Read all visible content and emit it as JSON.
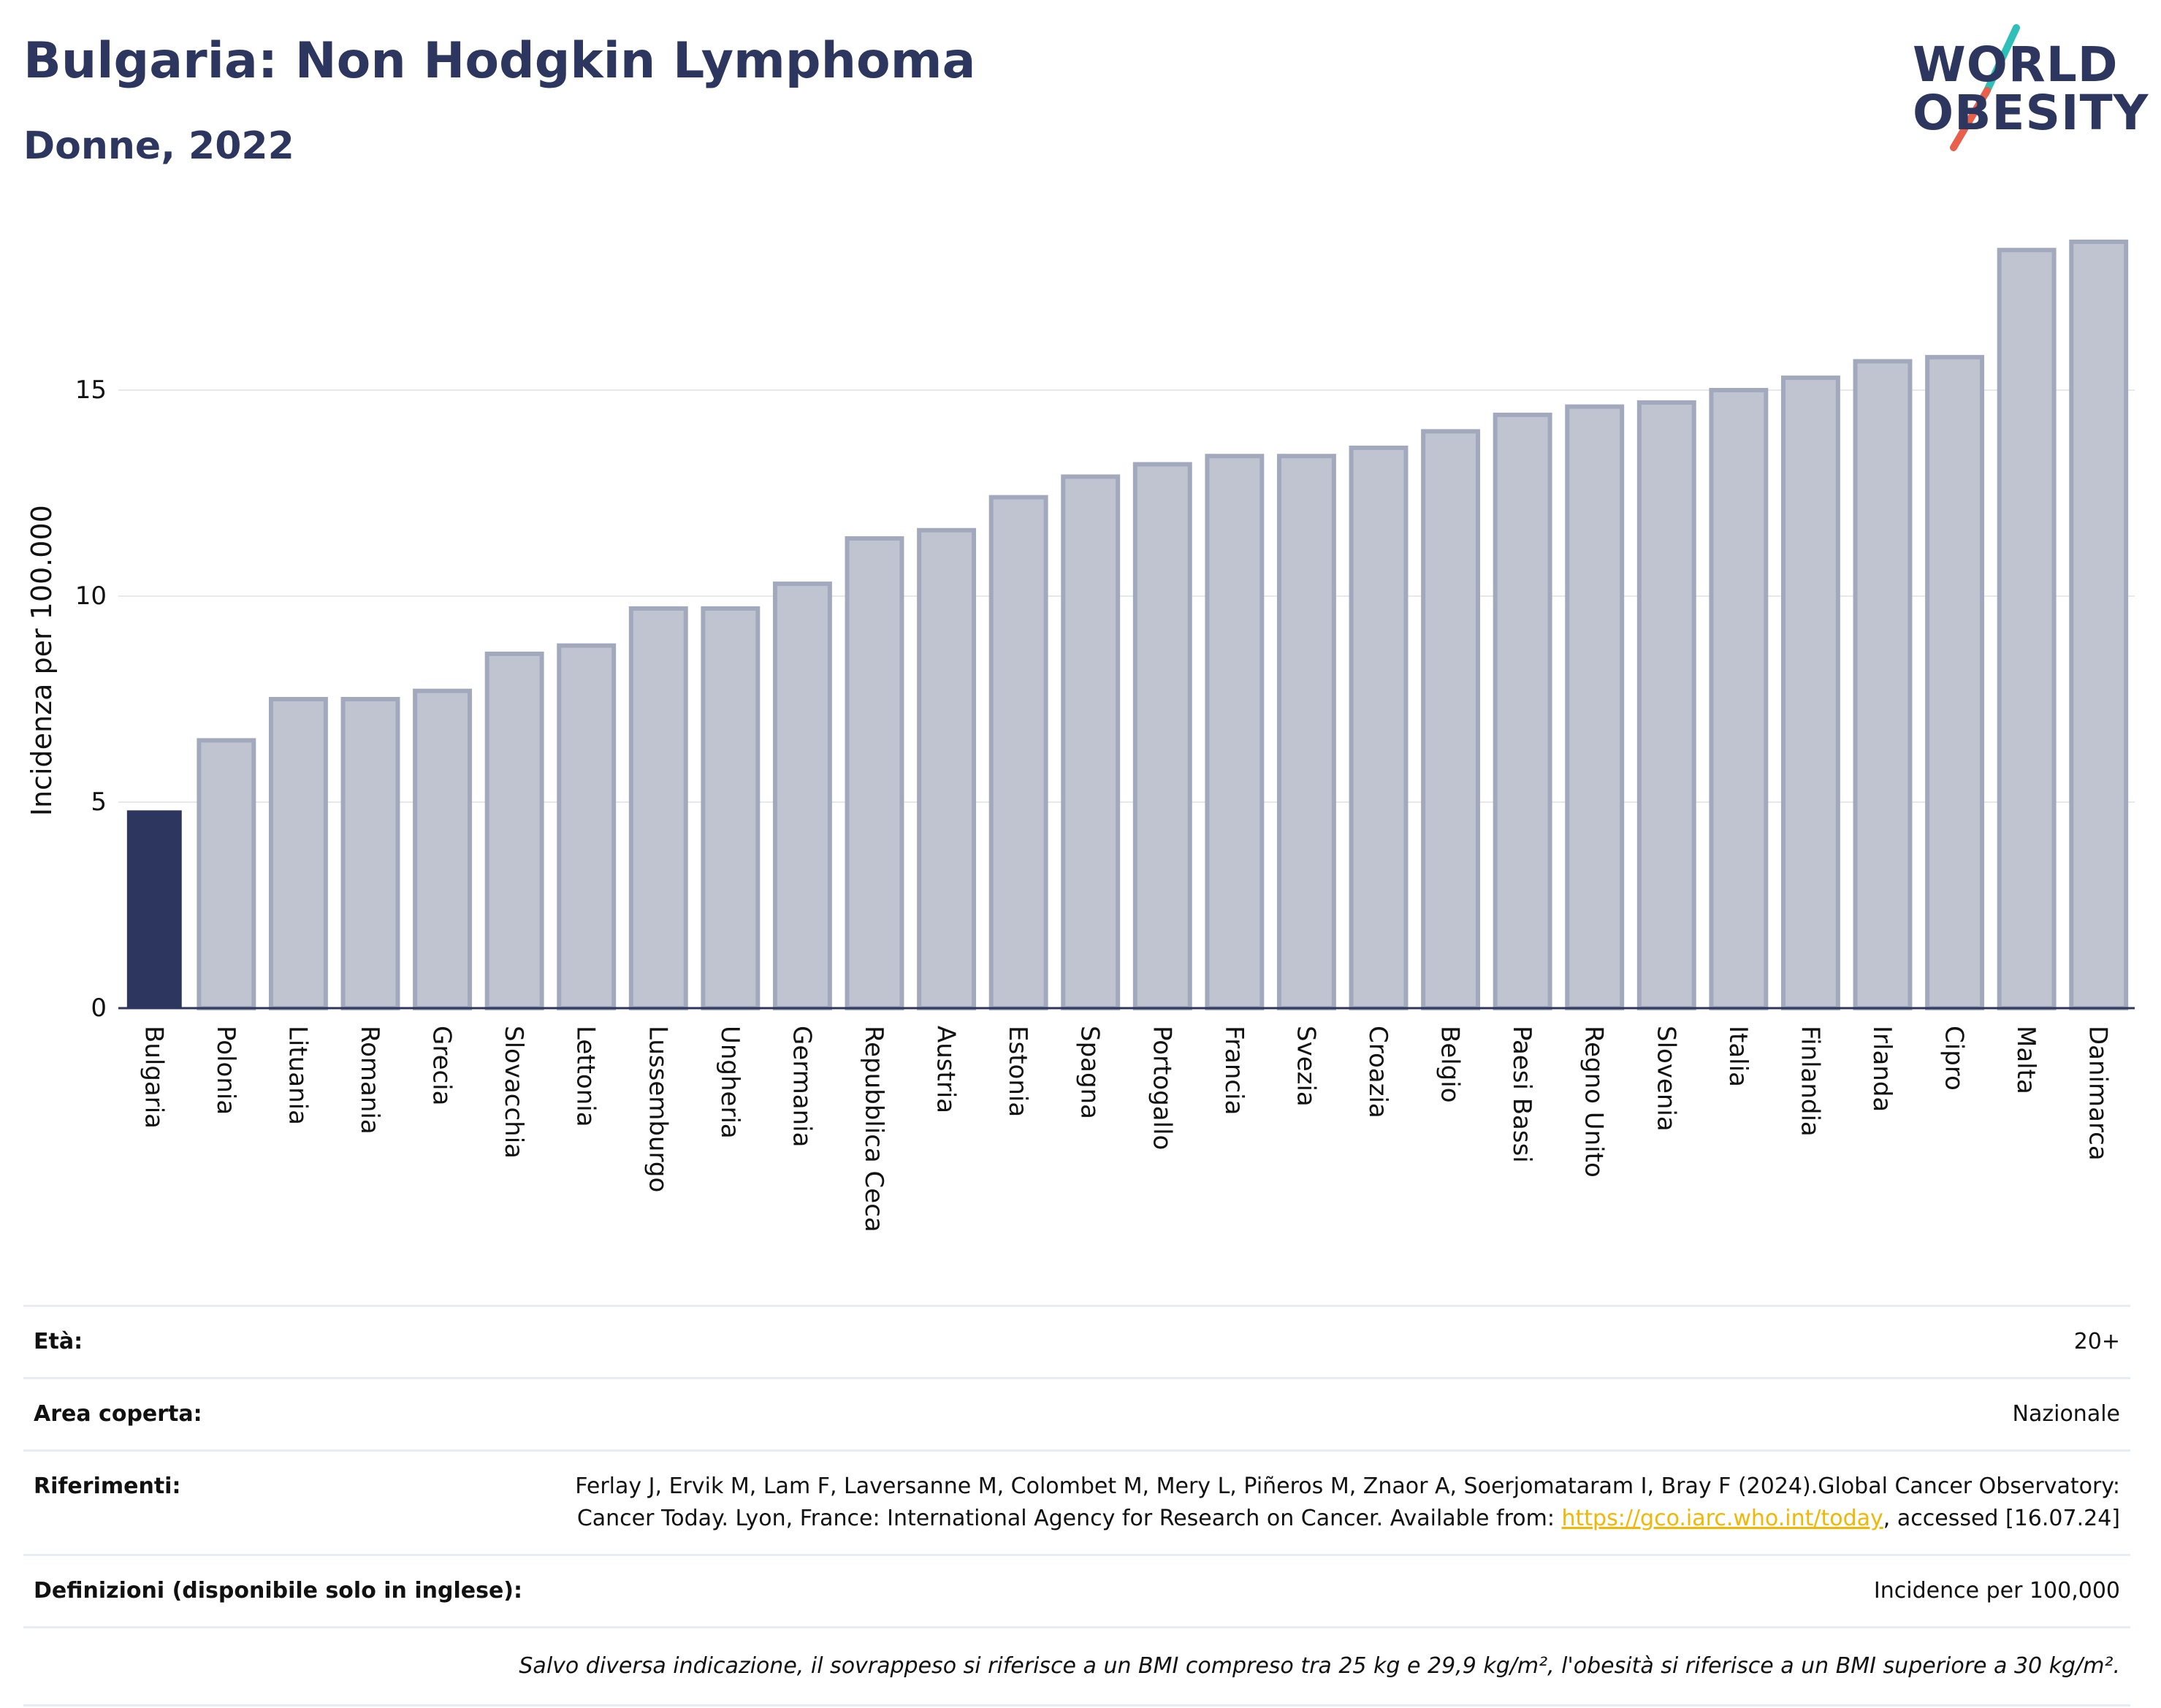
{
  "header": {
    "title": "Bulgaria: Non Hodgkin Lymphoma",
    "subtitle": "Donne, 2022"
  },
  "logo": {
    "line1": "WORLD",
    "line2": "OBESITY",
    "accent_colors": [
      "#2ebfb8",
      "#e8604c"
    ]
  },
  "colors": {
    "highlight_bar": "#2c365e",
    "other_bars": "#c0c4d1",
    "other_bars_outline": "#a3a9bd",
    "gridline": "#e6e8ee",
    "axis_text": "#111111",
    "link": "#f2b705"
  },
  "chart_data": {
    "type": "bar",
    "title": "Bulgaria: Non Hodgkin Lymphoma",
    "subtitle": "Donne, 2022",
    "xlabel": "",
    "ylabel": "Incidenza per 100.000",
    "ylim": [
      0,
      19
    ],
    "yticks": [
      0,
      5,
      10,
      15
    ],
    "grid": true,
    "legend": "none",
    "highlight": "Bulgaria",
    "categories": [
      "Bulgaria",
      "Polonia",
      "Lituania",
      "Romania",
      "Grecia",
      "Slovacchia",
      "Lettonia",
      "Lussemburgo",
      "Ungheria",
      "Germania",
      "Repubblica Ceca",
      "Austria",
      "Estonia",
      "Spagna",
      "Portogallo",
      "Francia",
      "Svezia",
      "Croazia",
      "Belgio",
      "Paesi Bassi",
      "Regno Unito",
      "Slovenia",
      "Italia",
      "Finlandia",
      "Irlanda",
      "Cipro",
      "Malta",
      "Danimarca"
    ],
    "values": [
      4.8,
      6.5,
      7.5,
      7.5,
      7.7,
      8.6,
      8.8,
      9.7,
      9.7,
      10.3,
      11.4,
      11.6,
      12.4,
      12.9,
      13.2,
      13.4,
      13.4,
      13.6,
      14.0,
      14.4,
      14.6,
      14.7,
      15.0,
      15.3,
      15.7,
      15.8,
      18.4,
      18.6
    ]
  },
  "info": {
    "age_label": "Età:",
    "age_value": "20+",
    "coverage_label": "Area coperta:",
    "coverage_value": "Nazionale",
    "references_label": "Riferimenti:",
    "references_text": "Ferlay J, Ervik M, Lam F, Laversanne M, Colombet M, Mery L, Piñeros M, Znaor A, Soerjomataram I, Bray F (2024).Global Cancer Observatory: Cancer Today. Lyon, France: International Agency for Research on Cancer. Available from: ",
    "references_link": "https://gco.iarc.who.int/today",
    "references_suffix": ", accessed [16.07.24]",
    "definitions_label": "Definizioni (disponibile solo in inglese):",
    "definitions_value": "Incidence per 100,000",
    "note": "Salvo diversa indicazione, il sovrappeso si riferisce a un BMI compreso tra 25 kg e 29,9 kg/m², l'obesità si riferisce a un BMI superiore a 30 kg/m²."
  }
}
